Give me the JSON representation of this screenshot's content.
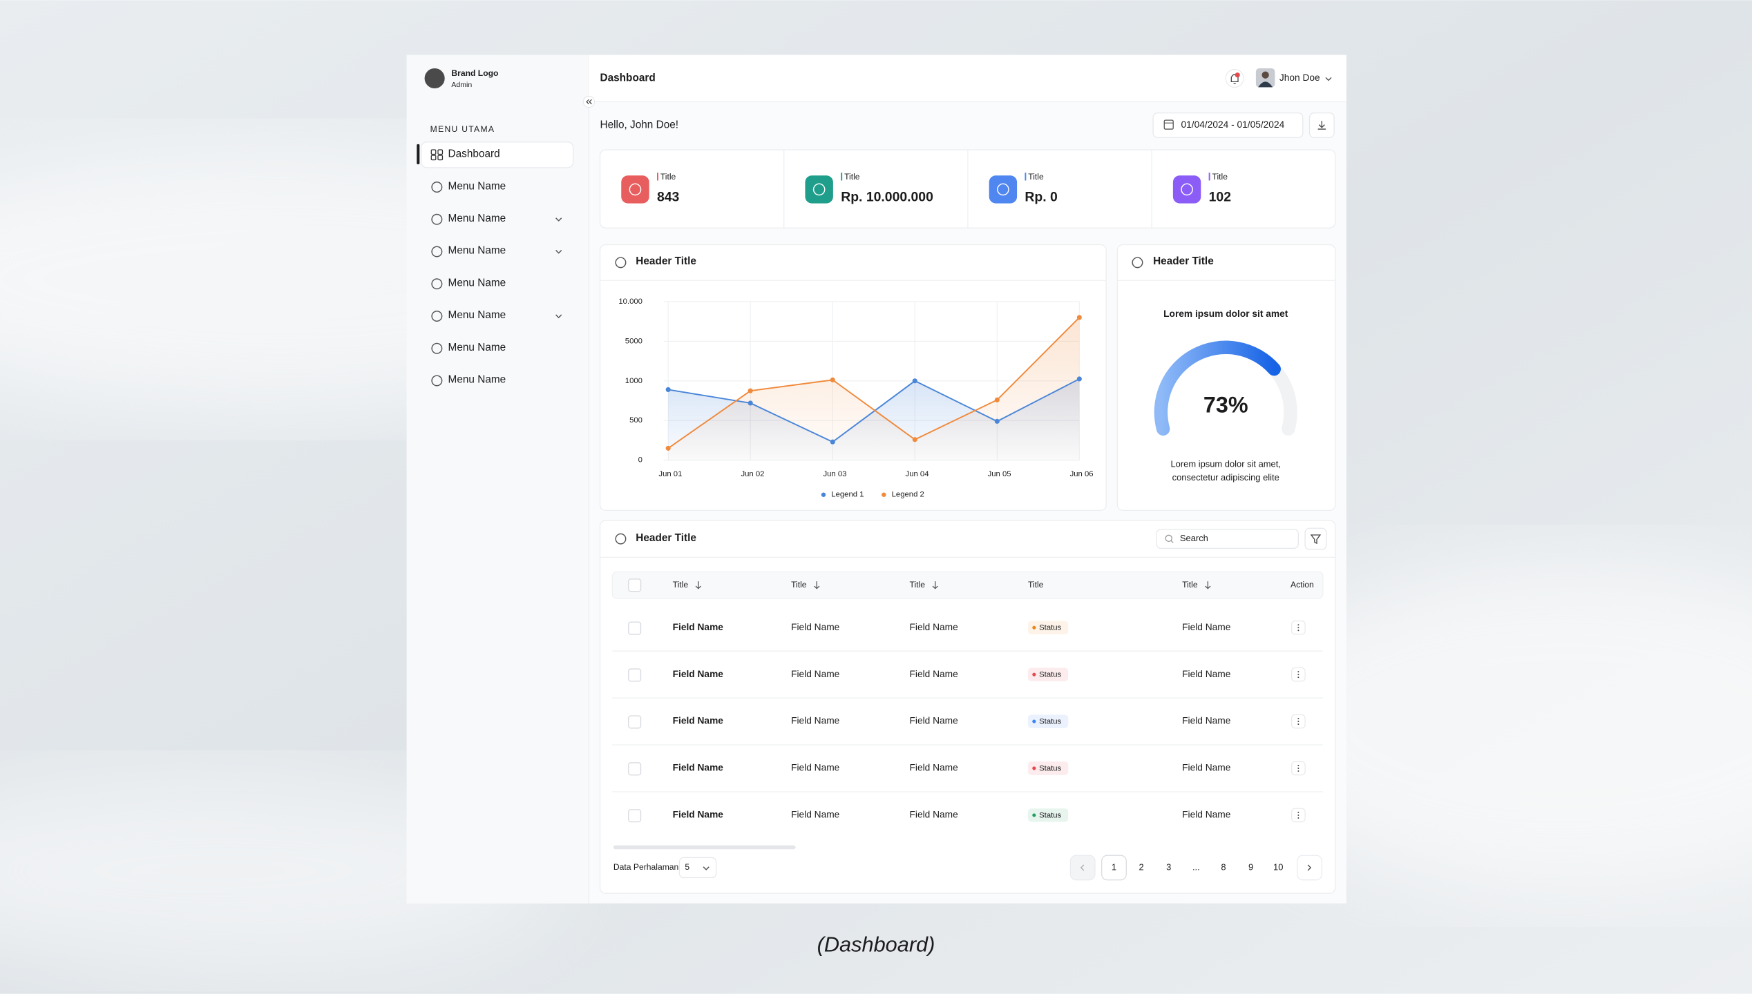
{
  "sidebar": {
    "brand": "Brand Logo",
    "role": "Admin",
    "section": "MENU UTAMA",
    "items": [
      {
        "label": "Dashboard",
        "active": true
      },
      {
        "label": "Menu Name"
      },
      {
        "label": "Menu Name",
        "submenu": true
      },
      {
        "label": "Menu Name",
        "submenu": true
      },
      {
        "label": "Menu Name"
      },
      {
        "label": "Menu Name",
        "submenu": true
      },
      {
        "label": "Menu Name"
      },
      {
        "label": "Menu Name"
      }
    ]
  },
  "header": {
    "title": "Dashboard",
    "user": "Jhon Doe"
  },
  "greeting": "Hello, John Doe!",
  "date_range": "01/04/2024 - 01/05/2024",
  "stats": [
    {
      "label": "Title",
      "value": "843",
      "color": "#e85d5d"
    },
    {
      "label": "Title",
      "value": "Rp. 10.000.000",
      "color": "#1f9e8c"
    },
    {
      "label": "Title",
      "value": "Rp. 0",
      "color": "#4f86f0"
    },
    {
      "label": "Title",
      "value": "102",
      "color": "#8b5cf6"
    }
  ],
  "chart_data": [
    {
      "type": "line",
      "title": "Header Title",
      "categories": [
        "Jun 01",
        "Jun 02",
        "Jun 03",
        "Jun 04",
        "Jun 05",
        "Jun 06"
      ],
      "series": [
        {
          "name": "Legend 1",
          "color": "#4a86d8",
          "values": [
            890,
            720,
            230,
            1000,
            490,
            1200
          ]
        },
        {
          "name": "Legend 2",
          "color": "#f08a3c",
          "values": [
            150,
            875,
            1100,
            260,
            760,
            8000
          ]
        }
      ],
      "ylim": [
        0,
        10000
      ],
      "yticks": [
        0,
        500,
        1000,
        5000,
        {
          "value": 10000,
          "label": "10.000"
        }
      ],
      "grid": true
    },
    {
      "type": "gauge",
      "title": "Header Title",
      "subtitle": "Lorem ipsum dolor sit amet",
      "annotations": [
        "Lorem ipsum dolor sit amet,",
        "consectetur adipiscing elite"
      ],
      "values": [
        73
      ],
      "value_labels": [
        "73%"
      ],
      "ylim": [
        0,
        100
      ],
      "color": "#1f6ee8"
    }
  ],
  "table": {
    "title": "Header Title",
    "search": "Search",
    "columns": [
      {
        "label": "Title",
        "sortable": true
      },
      {
        "label": "Title",
        "sortable": true
      },
      {
        "label": "Title",
        "sortable": true
      },
      {
        "label": "Title"
      },
      {
        "label": "Title",
        "sortable": true
      },
      {
        "label": "Action"
      }
    ],
    "rows": [
      {
        "cells": [
          "Field Name",
          "Field Name",
          "Field Name",
          "Status",
          "Field Name"
        ],
        "status_color": "#e8891c"
      },
      {
        "cells": [
          "Field Name",
          "Field Name",
          "Field Name",
          "Status",
          "Field Name"
        ],
        "status_color": "#e5484d"
      },
      {
        "cells": [
          "Field Name",
          "Field Name",
          "Field Name",
          "Status",
          "Field Name"
        ],
        "status_color": "#3b82f6"
      },
      {
        "cells": [
          "Field Name",
          "Field Name",
          "Field Name",
          "Status",
          "Field Name"
        ],
        "status_color": "#e5484d"
      },
      {
        "cells": [
          "Field Name",
          "Field Name",
          "Field Name",
          "Status",
          "Field Name"
        ],
        "status_color": "#22a061"
      }
    ]
  },
  "pagination": {
    "label": "Data Perhalaman",
    "page_size": "5",
    "pages": [
      "1",
      "2",
      "3",
      "...",
      "8",
      "9",
      "10"
    ],
    "current": 0
  },
  "caption": "(Dashboard)"
}
